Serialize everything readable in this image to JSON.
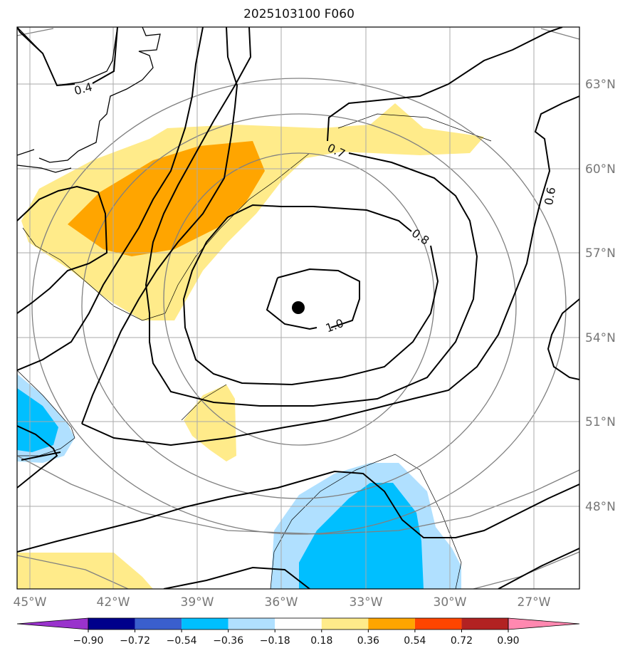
{
  "title": "2025103100 F060",
  "map": {
    "lon_ticks": [
      "45°W",
      "42°W",
      "39°W",
      "36°W",
      "33°W",
      "30°W",
      "27°W"
    ],
    "lat_ticks": [
      "63°N",
      "60°N",
      "57°N",
      "54°N",
      "51°N",
      "48°N"
    ],
    "contour_labels": [
      "0.4",
      "0.7",
      "0.8",
      "1.0",
      "0.6"
    ],
    "low_center_marker": "black-dot"
  },
  "colorbar": {
    "tick_labels": [
      "−0.90",
      "−0.72",
      "−0.54",
      "−0.36",
      "−0.18",
      "0.18",
      "0.36",
      "0.54",
      "0.72",
      "0.90"
    ],
    "colors": [
      "#9932cc",
      "#00008b",
      "#3a5fcd",
      "#00bfff",
      "#b0e0ff",
      "#ffffff",
      "#ffeb8a",
      "#ffa500",
      "#ff4500",
      "#b22222",
      "#ff88b0"
    ]
  }
}
